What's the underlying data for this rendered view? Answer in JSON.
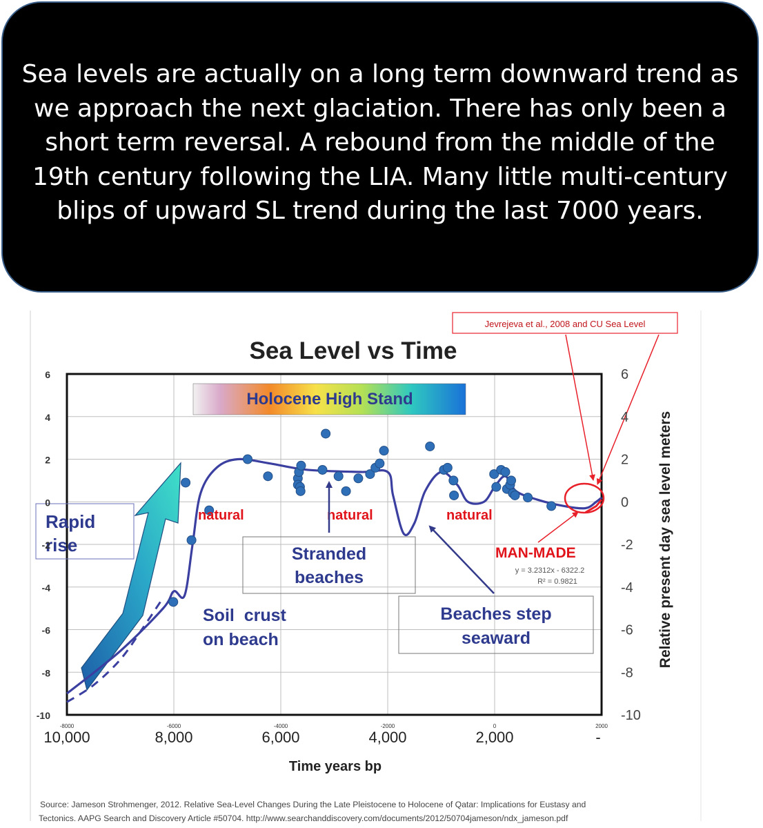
{
  "caption": "Sea levels are actually on a long term downward trend as we approach the next glaciation. There has only been a short term reversal. A rebound from the middle of the 19th century following the LIA. Many little multi-century blips of upward SL trend during the last 7000 years.",
  "chart_data": {
    "type": "scatter",
    "title": "Sea Level vs Time",
    "xlabel": "Time years bp",
    "ylabel": "Relative present day sea level meters",
    "xlim": [
      -8000,
      2000
    ],
    "ylim": [
      -10,
      6
    ],
    "grid": true,
    "x_ticks_small": [
      "-8000",
      "-6000",
      "-4000",
      "-2000",
      "0",
      "2000"
    ],
    "x_ticks_large": [
      "10,000",
      "8,000",
      "6,000",
      "4,000",
      "2,000",
      "-"
    ],
    "y_ticks_left": [
      "6",
      "4",
      "2",
      "0",
      "-2",
      "-4",
      "-6",
      "-8",
      "-10"
    ],
    "y_ticks_right": [
      "6",
      "4",
      "2",
      "0",
      "-2",
      "-4",
      "-6",
      "-8",
      "-10"
    ],
    "points": [
      {
        "x": -6010,
        "y": -4.7
      },
      {
        "x": -5780,
        "y": 0.9
      },
      {
        "x": -5670,
        "y": -1.8
      },
      {
        "x": -5340,
        "y": -0.4
      },
      {
        "x": -4620,
        "y": 2.0
      },
      {
        "x": -4240,
        "y": 1.2
      },
      {
        "x": -3680,
        "y": 1.1
      },
      {
        "x": -3680,
        "y": 0.8
      },
      {
        "x": -3660,
        "y": 1.4
      },
      {
        "x": -3640,
        "y": 0.7
      },
      {
        "x": -3630,
        "y": 0.5
      },
      {
        "x": -3620,
        "y": 1.7
      },
      {
        "x": -3220,
        "y": 1.5
      },
      {
        "x": -3160,
        "y": 3.2
      },
      {
        "x": -2920,
        "y": 1.2
      },
      {
        "x": -2780,
        "y": 0.5
      },
      {
        "x": -2550,
        "y": 1.1
      },
      {
        "x": -2330,
        "y": 1.3
      },
      {
        "x": -2230,
        "y": 1.6
      },
      {
        "x": -2150,
        "y": 1.8
      },
      {
        "x": -2070,
        "y": 2.4
      },
      {
        "x": -1210,
        "y": 2.6
      },
      {
        "x": -950,
        "y": 1.5
      },
      {
        "x": -880,
        "y": 1.6
      },
      {
        "x": -770,
        "y": 1.0
      },
      {
        "x": -760,
        "y": 0.3
      },
      {
        "x": -10,
        "y": 1.3
      },
      {
        "x": 30,
        "y": 0.7
      },
      {
        "x": 120,
        "y": 1.5
      },
      {
        "x": 200,
        "y": 1.4
      },
      {
        "x": 230,
        "y": 0.6
      },
      {
        "x": 290,
        "y": 0.8
      },
      {
        "x": 310,
        "y": 1.0
      },
      {
        "x": 340,
        "y": 0.4
      },
      {
        "x": 380,
        "y": 0.3
      },
      {
        "x": 620,
        "y": 0.2
      },
      {
        "x": 1060,
        "y": -0.2
      }
    ],
    "trend_line": [
      {
        "x": -8000,
        "y": -9.0
      },
      {
        "x": -7000,
        "y": -7.0
      },
      {
        "x": -6200,
        "y": -5.0
      },
      {
        "x": -6000,
        "y": -4.2
      },
      {
        "x": -5800,
        "y": -4.4
      },
      {
        "x": -5650,
        "y": -2.0
      },
      {
        "x": -5500,
        "y": 0.4
      },
      {
        "x": -5200,
        "y": 1.6
      },
      {
        "x": -4800,
        "y": 2.0
      },
      {
        "x": -4200,
        "y": 1.8
      },
      {
        "x": -3500,
        "y": 1.5
      },
      {
        "x": -2500,
        "y": 1.4
      },
      {
        "x": -2000,
        "y": 1.4
      },
      {
        "x": -1900,
        "y": 0.3
      },
      {
        "x": -1700,
        "y": -1.5
      },
      {
        "x": -1500,
        "y": -1.0
      },
      {
        "x": -1300,
        "y": 0.5
      },
      {
        "x": -1000,
        "y": 1.4
      },
      {
        "x": -700,
        "y": 0.8
      },
      {
        "x": -500,
        "y": 0.0
      },
      {
        "x": -200,
        "y": 0.0
      },
      {
        "x": 0,
        "y": 0.7
      },
      {
        "x": 200,
        "y": 1.2
      },
      {
        "x": 400,
        "y": 0.5
      },
      {
        "x": 800,
        "y": 0.1
      },
      {
        "x": 1300,
        "y": -0.2
      },
      {
        "x": 1700,
        "y": -0.3
      },
      {
        "x": 1900,
        "y": 0.0
      },
      {
        "x": 2000,
        "y": 0.2
      }
    ],
    "dashed_line": [
      {
        "x": -8000,
        "y": -9.4
      },
      {
        "x": -7500,
        "y": -8.6
      },
      {
        "x": -7000,
        "y": -7.4
      },
      {
        "x": -6600,
        "y": -6.0
      },
      {
        "x": -6200,
        "y": -4.5
      }
    ],
    "man_made_series": [
      {
        "x": 1700,
        "y": -0.5
      },
      {
        "x": 1900,
        "y": -0.2
      },
      {
        "x": 2000,
        "y": 0.1
      }
    ],
    "banner": "Holocene High Stand",
    "annotations": {
      "rapid_rise": [
        "Rapid",
        "rise"
      ],
      "natural": [
        "natural",
        "natural",
        "natural"
      ],
      "stranded": [
        "Stranded",
        "beaches"
      ],
      "soil": [
        "Soil  crust",
        "on beach"
      ],
      "beaches_step": [
        "Beaches step",
        "seaward"
      ],
      "man_made": "MAN-MADE",
      "equation": "y = 3.2312x - 6322.2",
      "r2": "R² = 0.9821",
      "jevrejeva": "Jevrejeva et al., 2008 and CU Sea Level"
    },
    "source_lines": [
      "Source: Jameson Strohmenger, 2012. Relative Sea-Level Changes During the Late Pleistocene to Holocene of Qatar: Implications for Eustasy and",
      "Tectonics.  AAPG Search and Discovery Article #50704. http://www.searchanddiscovery.com/documents/2012/50704jameson/ndx_jameson.pdf"
    ]
  }
}
